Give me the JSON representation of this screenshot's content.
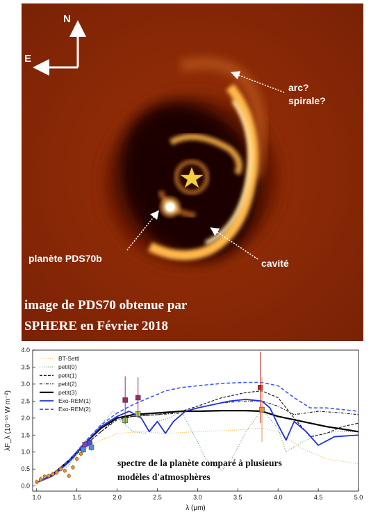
{
  "image_panel": {
    "compass_north": "N",
    "compass_east": "E",
    "annotation_arc_line1": "arc?",
    "annotation_arc_line2": "spirale?",
    "annotation_planet": "planète PDS70b",
    "annotation_cavity": "cavité",
    "caption_line1": "image de PDS70 obtenue par",
    "caption_line2": "SPHERE en Février 2018",
    "colors": {
      "background": "#8a2a07",
      "disk": "#ffb84a",
      "star": "#f2cf3c",
      "cavity": "#1f0500"
    }
  },
  "chart_data": {
    "type": "line",
    "xlabel": "λ (μm)",
    "ylabel": "λF_λ (10⁻¹⁶ W m⁻²)",
    "xlim": [
      0.95,
      5.0
    ],
    "ylim": [
      -0.15,
      4.0
    ],
    "x_ticks": [
      "1.0",
      "1.5",
      "2.0",
      "2.5",
      "3.0",
      "3.5",
      "4.0",
      "4.5",
      "5.0"
    ],
    "x_tick_values": [
      1.0,
      1.5,
      2.0,
      2.5,
      3.0,
      3.5,
      4.0,
      4.5,
      5.0
    ],
    "y_ticks": [
      "0.0",
      "0.5",
      "1.0",
      "1.5",
      "2.0",
      "2.5",
      "3.0",
      "3.5",
      "4.0"
    ],
    "y_tick_values": [
      0.0,
      0.5,
      1.0,
      1.5,
      2.0,
      2.5,
      3.0,
      3.5,
      4.0
    ],
    "legend_placement": "top-left",
    "overlay_text_line1": "spectre de la planète comparé à plusieurs",
    "overlay_text_line2": "modèles d'atmosphères",
    "series": [
      {
        "name": "BT-Settl",
        "color": "#e8b23a",
        "dash": "1,2",
        "width": 1,
        "x": [
          1.0,
          1.2,
          1.5,
          1.7,
          2.0,
          2.3,
          2.6,
          3.0,
          3.5,
          3.8,
          4.0,
          4.3,
          4.6,
          5.0
        ],
        "y": [
          0.1,
          0.3,
          0.9,
          1.25,
          1.55,
          1.6,
          1.55,
          1.6,
          1.65,
          1.7,
          1.6,
          1.1,
          0.8,
          0.65
        ]
      },
      {
        "name": "petit(0)",
        "color": "#5aa05a",
        "dash": "1,2",
        "width": 1.1,
        "x": [
          1.0,
          1.2,
          1.4,
          1.6,
          1.8,
          1.95,
          2.05,
          2.2,
          2.35,
          2.5,
          2.65,
          2.8,
          3.0,
          3.1,
          3.3,
          3.45,
          3.6,
          3.8,
          4.0,
          4.1,
          4.3,
          4.5,
          4.7,
          5.0
        ],
        "y": [
          0.1,
          0.3,
          0.6,
          1.3,
          1.8,
          2.2,
          1.9,
          1.6,
          1.55,
          1.9,
          2.0,
          2.2,
          1.3,
          0.8,
          0.45,
          0.9,
          1.6,
          2.25,
          1.7,
          1.0,
          1.3,
          1.5,
          1.6,
          1.6
        ]
      },
      {
        "name": "petit(1)",
        "color": "#222222",
        "dash": "4,2",
        "width": 1.2,
        "x": [
          1.0,
          1.2,
          1.4,
          1.6,
          1.8,
          2.0,
          2.2,
          2.5,
          2.8,
          3.0,
          3.3,
          3.6,
          3.8,
          4.0,
          4.2,
          4.4,
          4.6,
          4.8,
          5.0
        ],
        "y": [
          0.1,
          0.35,
          0.7,
          1.2,
          1.6,
          2.0,
          2.05,
          2.1,
          2.2,
          2.35,
          2.6,
          2.75,
          2.8,
          2.6,
          2.0,
          1.45,
          1.55,
          1.75,
          1.85
        ]
      },
      {
        "name": "petit(2)",
        "color": "#222222",
        "dash": "4,2,1,2",
        "width": 1.2,
        "x": [
          1.0,
          1.2,
          1.4,
          1.6,
          1.8,
          2.0,
          2.2,
          2.5,
          2.8,
          3.0,
          3.3,
          3.6,
          3.8,
          4.0,
          4.2,
          4.5,
          4.8,
          5.0
        ],
        "y": [
          0.1,
          0.35,
          0.7,
          1.2,
          1.6,
          1.95,
          2.05,
          2.1,
          2.15,
          2.3,
          2.45,
          2.5,
          2.5,
          2.35,
          2.1,
          2.2,
          2.15,
          2.1
        ]
      },
      {
        "name": "petit(3)",
        "color": "#000000",
        "dash": "",
        "width": 2.2,
        "x": [
          1.0,
          1.2,
          1.4,
          1.6,
          1.8,
          2.0,
          2.2,
          2.5,
          2.8,
          3.0,
          3.3,
          3.6,
          3.8,
          4.0,
          4.3,
          4.6,
          5.0
        ],
        "y": [
          0.1,
          0.35,
          0.75,
          1.25,
          1.7,
          2.0,
          2.1,
          2.15,
          2.2,
          2.2,
          2.22,
          2.22,
          2.2,
          2.05,
          1.9,
          1.75,
          1.6
        ]
      },
      {
        "name": "Exo-REM(1)",
        "color": "#1f2fe0",
        "dash": "",
        "width": 1.8,
        "x": [
          1.0,
          1.2,
          1.4,
          1.6,
          1.8,
          2.0,
          2.15,
          2.3,
          2.4,
          2.5,
          2.6,
          2.7,
          2.85,
          3.0,
          3.2,
          3.4,
          3.6,
          3.8,
          3.9,
          4.0,
          4.1,
          4.2,
          4.35,
          4.5,
          4.7,
          5.0
        ],
        "y": [
          0.1,
          0.3,
          0.7,
          1.25,
          1.75,
          2.05,
          2.2,
          2.0,
          1.6,
          1.9,
          1.55,
          1.9,
          2.2,
          2.3,
          2.4,
          2.5,
          2.55,
          2.5,
          2.3,
          1.8,
          1.35,
          1.9,
          1.6,
          1.2,
          1.45,
          1.5
        ]
      },
      {
        "name": "Exo-REM(2)",
        "color": "#3a5af5",
        "dash": "5,3",
        "width": 1.6,
        "x": [
          1.0,
          1.2,
          1.4,
          1.6,
          1.8,
          2.0,
          2.2,
          2.4,
          2.6,
          2.8,
          3.0,
          3.3,
          3.6,
          3.8,
          4.0,
          4.2,
          4.4,
          4.6,
          4.8,
          5.0
        ],
        "y": [
          0.1,
          0.35,
          0.75,
          1.3,
          1.8,
          2.15,
          2.4,
          2.6,
          2.8,
          2.9,
          2.95,
          3.02,
          3.05,
          3.05,
          2.95,
          2.6,
          2.3,
          2.3,
          2.25,
          2.2
        ]
      }
    ],
    "observations": [
      {
        "x": 1.6,
        "y": 1.22,
        "err": 0.12,
        "color": "#7a3fd0"
      },
      {
        "x": 1.66,
        "y": 1.26,
        "err": 0.12,
        "color": "#4a4fe0"
      },
      {
        "x": 1.58,
        "y": 1.07,
        "err": 0.1,
        "color": "#4a8fd8"
      },
      {
        "x": 1.68,
        "y": 1.14,
        "err": 0.1,
        "color": "#4a8fd8"
      },
      {
        "x": 2.1,
        "y": 1.93,
        "err": 0.1,
        "color": "#9ad05a"
      },
      {
        "x": 2.26,
        "y": 2.12,
        "err": 0.1,
        "color": "#9ad05a"
      },
      {
        "x": 2.1,
        "y": 2.53,
        "err": 0.7,
        "color": "#9a2a6a"
      },
      {
        "x": 2.26,
        "y": 2.6,
        "err": 0.6,
        "color": "#9a2a6a"
      },
      {
        "x": 3.78,
        "y": 2.9,
        "err": 1.05,
        "color": "#c82020"
      },
      {
        "x": 3.8,
        "y": 2.25,
        "err": 0.95,
        "color": "#e8903a"
      }
    ],
    "low_res_points": [
      {
        "x": 1.0,
        "y": 0.12
      },
      {
        "x": 1.05,
        "y": 0.2
      },
      {
        "x": 1.1,
        "y": 0.28
      },
      {
        "x": 1.15,
        "y": 0.3
      },
      {
        "x": 1.2,
        "y": 0.35
      },
      {
        "x": 1.25,
        "y": 0.4
      },
      {
        "x": 1.3,
        "y": 0.5
      },
      {
        "x": 1.35,
        "y": 0.45
      },
      {
        "x": 1.4,
        "y": 0.3
      },
      {
        "x": 1.45,
        "y": 0.55
      },
      {
        "x": 1.5,
        "y": 0.8
      },
      {
        "x": 1.55,
        "y": 0.95
      }
    ]
  }
}
